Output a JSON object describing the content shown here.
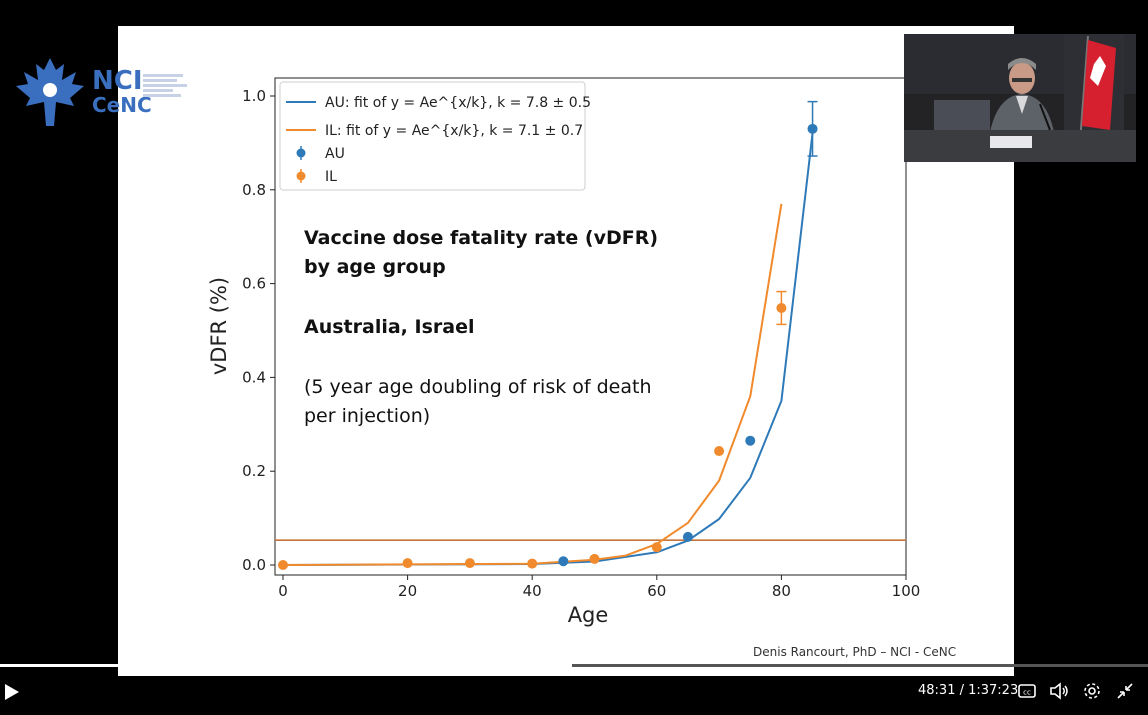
{
  "chart_data": {
    "type": "scatter",
    "xlabel": "Age",
    "ylabel": "vDFR (%)",
    "xlim": [
      0,
      100
    ],
    "ylim": [
      0,
      1.0
    ],
    "xticks": [
      "0",
      "20",
      "40",
      "60",
      "80",
      "100"
    ],
    "yticks": [
      "0.0",
      "0.2",
      "0.4",
      "0.6",
      "0.8",
      "1.0"
    ],
    "grid": false,
    "legend_position": "top-left",
    "legend": [
      {
        "label": "AU: fit of y = Ae^{x/k}, k = 7.8 ± 0.5",
        "kind": "line",
        "color": "#2e7ab8"
      },
      {
        "label": "IL: fit of y = Ae^{x/k}, k = 7.1 ± 0.7",
        "kind": "line",
        "color": "#f08a2c"
      },
      {
        "label": "AU",
        "kind": "marker",
        "color": "#2e7ab8"
      },
      {
        "label": "IL",
        "kind": "marker",
        "color": "#f08a2c"
      }
    ],
    "series": [
      {
        "name": "AU",
        "color": "#2e7ab8",
        "points": [
          {
            "x": 45,
            "y": 0.008
          },
          {
            "x": 65,
            "y": 0.06
          },
          {
            "x": 75,
            "y": 0.265
          },
          {
            "x": 85,
            "y": 0.93,
            "err": 0.058
          }
        ]
      },
      {
        "name": "IL",
        "color": "#f08a2c",
        "points": [
          {
            "x": 0,
            "y": 0.0
          },
          {
            "x": 20,
            "y": 0.004
          },
          {
            "x": 30,
            "y": 0.004
          },
          {
            "x": 40,
            "y": 0.003
          },
          {
            "x": 50,
            "y": 0.013
          },
          {
            "x": 60,
            "y": 0.038
          },
          {
            "x": 70,
            "y": 0.243
          },
          {
            "x": 80,
            "y": 0.548,
            "err": 0.035
          }
        ]
      }
    ],
    "fits": [
      {
        "name": "AU fit",
        "color": "#2e7ab8",
        "x_range": [
          0,
          85
        ],
        "points": [
          [
            0,
            0.0
          ],
          [
            40,
            0.0021
          ],
          [
            50,
            0.0075
          ],
          [
            60,
            0.027
          ],
          [
            65,
            0.052
          ],
          [
            70,
            0.098
          ],
          [
            75,
            0.186
          ],
          [
            80,
            0.35
          ],
          [
            85,
            0.92
          ]
        ]
      },
      {
        "name": "IL fit",
        "color": "#f08a2c",
        "x_range": [
          0,
          80
        ],
        "points": [
          [
            0,
            0.0
          ],
          [
            40,
            0.0028
          ],
          [
            50,
            0.011
          ],
          [
            55,
            0.02
          ],
          [
            60,
            0.045
          ],
          [
            65,
            0.09
          ],
          [
            70,
            0.18
          ],
          [
            75,
            0.36
          ],
          [
            80,
            0.77
          ]
        ]
      }
    ],
    "hline": {
      "y": 0.053,
      "color": "#c4743c"
    },
    "annotations": {
      "title_line1": "Vaccine dose fatality rate (vDFR)",
      "title_line2": "by age group",
      "countries": "Australia, Israel",
      "note_line1": "(5 year age doubling of risk of death",
      "note_line2": "per injection)"
    }
  },
  "slide": {
    "credit": "Denis Rancourt, PhD  –  NCI - CeNC",
    "logo_text_1": "NCI",
    "logo_text_2": "CeNC"
  },
  "player": {
    "time": "48:31 / 1:37:23",
    "progress_fraction": 0.498,
    "buffered_fraction": 0.49,
    "icons": [
      "play-icon",
      "captions-icon",
      "volume-icon",
      "settings-icon",
      "exit-fullscreen-icon"
    ]
  }
}
